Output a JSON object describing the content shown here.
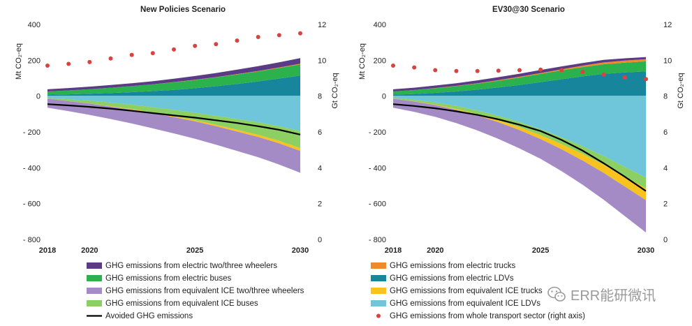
{
  "chart_data": [
    {
      "type": "area",
      "title": "New Policies Scenario",
      "ylabel": "Mt CO₂-eq",
      "y2label": "Gt CO₂-eq",
      "ylim": [
        -800,
        400
      ],
      "y2lim": [
        0,
        12
      ],
      "x": [
        2018,
        2019,
        2020,
        2021,
        2022,
        2023,
        2024,
        2025,
        2026,
        2027,
        2028,
        2029,
        2030
      ],
      "x_tick_labels": [
        "2018",
        "2020",
        "2025",
        "2030"
      ],
      "y_tick_labels": [
        "400",
        "200",
        "0",
        "- 200",
        "- 400",
        "- 600",
        "- 800"
      ],
      "y2_tick_labels": [
        "12",
        "10",
        "8",
        "6",
        "4",
        "2",
        "0"
      ],
      "stacked_positive": [
        {
          "name": "GHG emissions from electric LDVs",
          "color": "#17869c",
          "values": [
            8,
            10,
            13,
            17,
            22,
            28,
            35,
            44,
            55,
            68,
            82,
            98,
            115
          ]
        },
        {
          "name": "GHG emissions from electric buses",
          "color": "#2bb24c",
          "values": [
            18,
            22,
            26,
            30,
            34,
            38,
            42,
            46,
            50,
            53,
            56,
            59,
            62
          ]
        },
        {
          "name": "GHG emissions from electric trucks",
          "color": "#ef8a2a",
          "values": [
            0,
            0,
            0,
            0,
            0,
            0,
            1,
            1,
            1,
            2,
            2,
            3,
            4
          ]
        },
        {
          "name": "GHG emissions from electric two/three wheelers",
          "color": "#5b3a86",
          "values": [
            12,
            13,
            14,
            15,
            16,
            17,
            19,
            21,
            23,
            25,
            27,
            29,
            31
          ]
        }
      ],
      "stacked_negative": [
        {
          "name": "GHG emissions from equivalent ICE LDVs",
          "color": "#6fc6da",
          "values": [
            -10,
            -18,
            -26,
            -36,
            -48,
            -62,
            -77,
            -93,
            -110,
            -128,
            -146,
            -168,
            -195
          ]
        },
        {
          "name": "GHG emissions from equivalent ICE buses",
          "color": "#8ccf62",
          "values": [
            -5,
            -10,
            -15,
            -20,
            -25,
            -30,
            -35,
            -42,
            -50,
            -60,
            -70,
            -82,
            -95
          ]
        },
        {
          "name": "GHG emissions from equivalent ICE trucks",
          "color": "#f8c21f",
          "values": [
            0,
            0,
            -1,
            -2,
            -3,
            -4,
            -5,
            -6,
            -8,
            -10,
            -12,
            -14,
            -16
          ]
        },
        {
          "name": "GHG emissions from equivalent ICE two/three wheelers",
          "color": "#a58bc6",
          "values": [
            -50,
            -56,
            -63,
            -70,
            -77,
            -84,
            -91,
            -97,
            -103,
            -108,
            -113,
            -118,
            -122
          ]
        }
      ],
      "line": {
        "name": "Avoided GHG emissions",
        "color": "#000000",
        "values": [
          -45,
          -52,
          -60,
          -70,
          -82,
          -95,
          -108,
          -120,
          -135,
          -150,
          -168,
          -188,
          -215
        ]
      },
      "dots": {
        "name": "GHG emissions from whole transport sector (right axis)",
        "color": "#d9423e",
        "axis": "right",
        "values": [
          9.7,
          9.8,
          9.9,
          10.1,
          10.3,
          10.4,
          10.6,
          10.8,
          10.9,
          11.1,
          11.3,
          11.4,
          11.5
        ]
      }
    },
    {
      "type": "area",
      "title": "EV30@30 Scenario",
      "ylabel": "Mt CO₂-eq",
      "y2label": "Gt CO₂-eq",
      "ylim": [
        -800,
        400
      ],
      "y2lim": [
        0,
        12
      ],
      "x": [
        2018,
        2019,
        2020,
        2021,
        2022,
        2023,
        2024,
        2025,
        2026,
        2027,
        2028,
        2029,
        2030
      ],
      "x_tick_labels": [
        "2018",
        "2020",
        "2025",
        "2030"
      ],
      "y_tick_labels": [
        "400",
        "200",
        "0",
        "- 200",
        "- 400",
        "- 600",
        "- 800"
      ],
      "y2_tick_labels": [
        "12",
        "10",
        "8",
        "6",
        "4",
        "2",
        "0"
      ],
      "stacked_positive": [
        {
          "name": "GHG emissions from electric LDVs",
          "color": "#17869c",
          "values": [
            8,
            12,
            18,
            26,
            36,
            48,
            62,
            78,
            94,
            110,
            124,
            132,
            138
          ]
        },
        {
          "name": "GHG emissions from electric buses",
          "color": "#2bb24c",
          "values": [
            18,
            22,
            26,
            30,
            34,
            38,
            42,
            46,
            50,
            52,
            54,
            55,
            56
          ]
        },
        {
          "name": "GHG emissions from electric trucks",
          "color": "#ef8a2a",
          "values": [
            0,
            0,
            1,
            1,
            2,
            3,
            4,
            5,
            6,
            8,
            10,
            11,
            12
          ]
        },
        {
          "name": "GHG emissions from electric two/three wheelers",
          "color": "#5b3a86",
          "values": [
            12,
            13,
            14,
            15,
            16,
            17,
            17,
            17,
            16,
            15,
            14,
            13,
            12
          ]
        }
      ],
      "stacked_negative": [
        {
          "name": "GHG emissions from equivalent ICE LDVs",
          "color": "#6fc6da",
          "values": [
            -10,
            -20,
            -35,
            -55,
            -80,
            -110,
            -145,
            -185,
            -230,
            -280,
            -335,
            -395,
            -455
          ]
        },
        {
          "name": "GHG emissions from equivalent ICE buses",
          "color": "#8ccf62",
          "values": [
            -5,
            -9,
            -13,
            -17,
            -21,
            -25,
            -29,
            -33,
            -38,
            -43,
            -48,
            -54,
            -60
          ]
        },
        {
          "name": "GHG emissions from equivalent ICE trucks",
          "color": "#f8c21f",
          "values": [
            0,
            -1,
            -2,
            -4,
            -7,
            -11,
            -16,
            -22,
            -29,
            -37,
            -46,
            -56,
            -66
          ]
        },
        {
          "name": "GHG emissions from equivalent ICE two/three wheelers",
          "color": "#a58bc6",
          "values": [
            -50,
            -58,
            -66,
            -75,
            -84,
            -93,
            -102,
            -110,
            -122,
            -135,
            -150,
            -165,
            -180
          ]
        }
      ],
      "line": {
        "name": "Avoided GHG emissions",
        "color": "#000000",
        "values": [
          -45,
          -55,
          -68,
          -85,
          -105,
          -130,
          -160,
          -195,
          -245,
          -305,
          -375,
          -450,
          -530
        ]
      },
      "dots": {
        "name": "GHG emissions from whole transport sector (right axis)",
        "color": "#d9423e",
        "axis": "right",
        "values": [
          9.7,
          9.6,
          9.45,
          9.4,
          9.4,
          9.42,
          9.45,
          9.48,
          9.45,
          9.35,
          9.2,
          9.05,
          8.95
        ]
      }
    }
  ],
  "legend": {
    "left": [
      {
        "label": "GHG emissions from electric two/three wheelers",
        "color": "#5b3a86",
        "kind": "box"
      },
      {
        "label": "GHG emissions from electric buses",
        "color": "#2bb24c",
        "kind": "box"
      },
      {
        "label": "GHG emissions from equivalent ICE two/three wheelers",
        "color": "#a58bc6",
        "kind": "box"
      },
      {
        "label": "GHG emissions from equivalent ICE buses",
        "color": "#8ccf62",
        "kind": "box"
      },
      {
        "label": "Avoided GHG emissions",
        "color": "#000000",
        "kind": "line"
      }
    ],
    "right": [
      {
        "label": "GHG emissions from electric trucks",
        "color": "#ef8a2a",
        "kind": "box"
      },
      {
        "label": "GHG emissions from electric LDVs",
        "color": "#17869c",
        "kind": "box"
      },
      {
        "label": "GHG emissions from equivalent ICE trucks",
        "color": "#f8c21f",
        "kind": "box"
      },
      {
        "label": "GHG emissions from equivalent ICE LDVs",
        "color": "#6fc6da",
        "kind": "box"
      },
      {
        "label": "GHG emissions from whole transport sector (right axis)",
        "color": "#d9423e",
        "kind": "dot"
      }
    ]
  },
  "watermark": {
    "text": "ERR能研微讯",
    "icon": "wechat-icon"
  }
}
